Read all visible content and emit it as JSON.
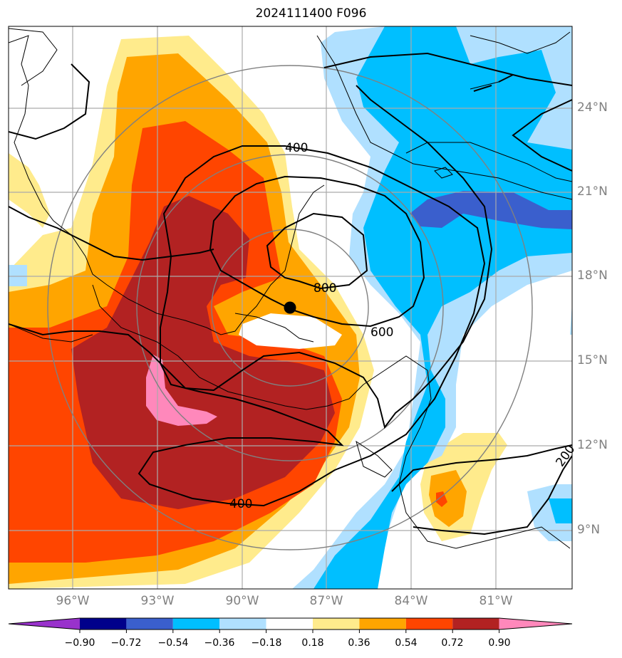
{
  "title": "2024111400 F096",
  "map": {
    "lat_labels": [
      "24°N",
      "21°N",
      "18°N",
      "15°N",
      "12°N",
      "9°N"
    ],
    "lon_labels": [
      "96°W",
      "93°W",
      "90°W",
      "87°W",
      "84°W",
      "81°W"
    ],
    "contour_labels": {
      "c400_north": "400",
      "c800": "800",
      "c600": "600",
      "c400_south": "400",
      "c200": "200"
    },
    "center_marker": "storm-center-dot"
  },
  "colorbar": {
    "ticks": [
      "−0.90",
      "−0.72",
      "−0.54",
      "−0.36",
      "−0.18",
      "0.18",
      "0.36",
      "0.54",
      "0.72",
      "0.90"
    ],
    "colors": [
      "#9932cc",
      "#00008b",
      "#3a5fcd",
      "#00bfff",
      "#b0e0ff",
      "#ffffff",
      "#ffeb8c",
      "#ffa500",
      "#ff4500",
      "#b22222",
      "#ff88bb"
    ]
  }
}
